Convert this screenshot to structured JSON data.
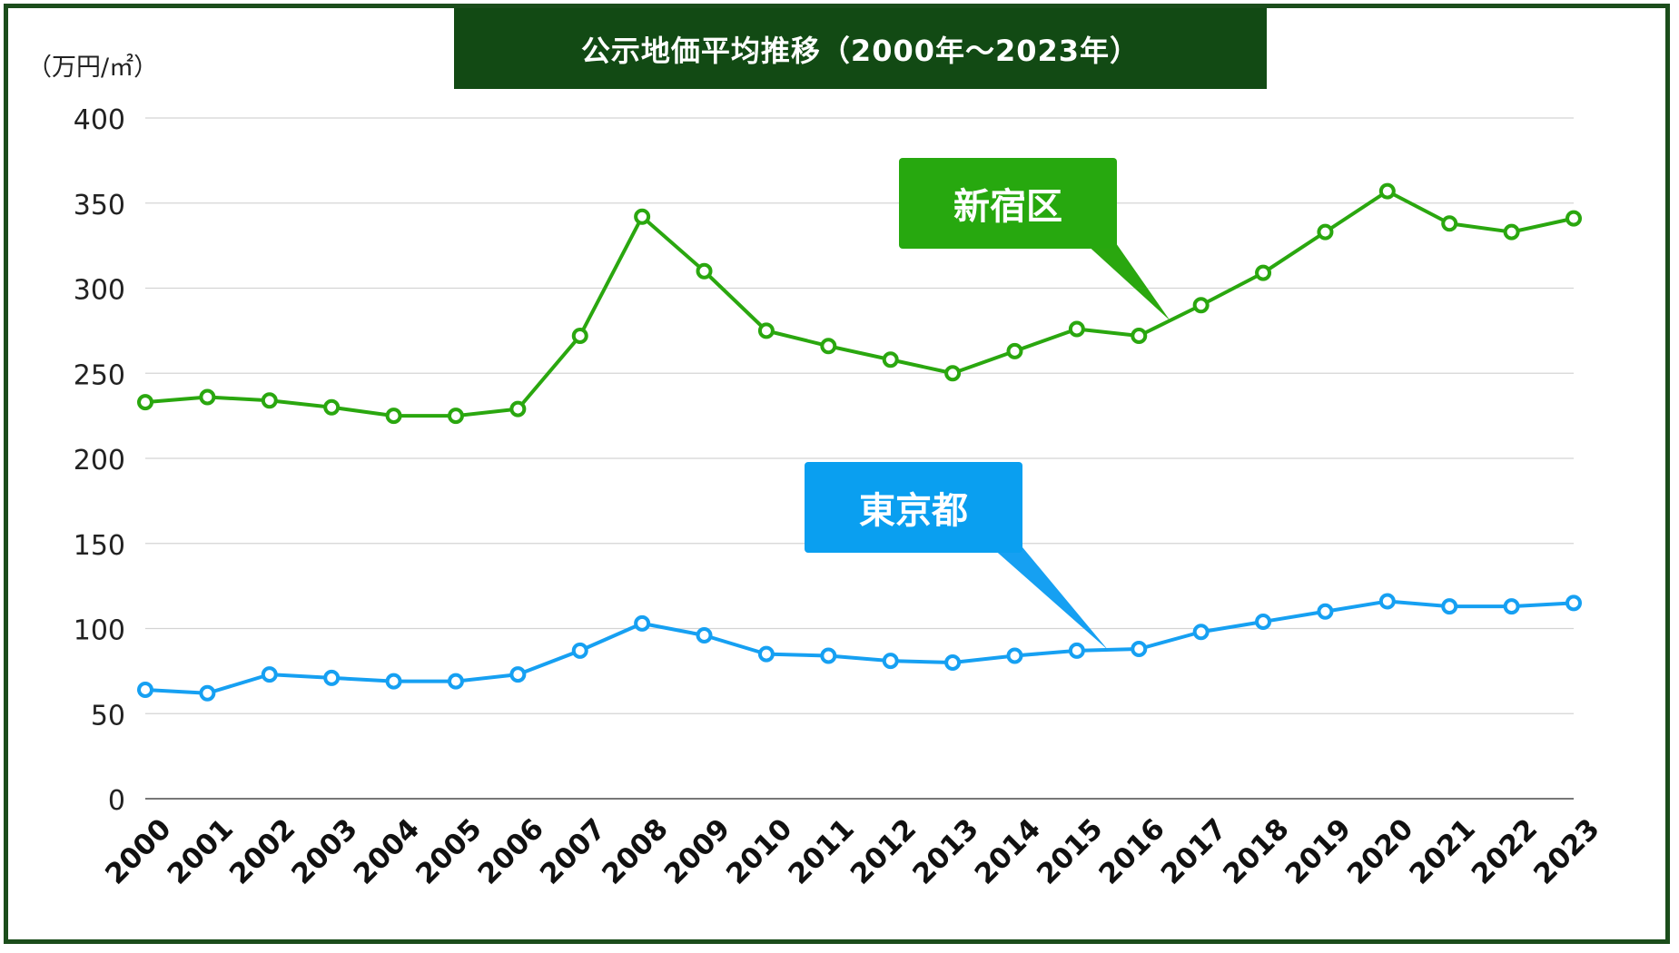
{
  "chart_data": {
    "type": "line",
    "title": "公示地価平均推移（2000年〜2023年）",
    "ylabel": "（万円/㎡）",
    "xlabel": "",
    "ylim": [
      0,
      400
    ],
    "yticks": [
      0,
      50,
      100,
      150,
      200,
      250,
      300,
      350,
      400
    ],
    "ytick_labels": [
      "0",
      "50",
      "100",
      "150",
      "200",
      "250",
      "300",
      "350",
      "400"
    ],
    "categories": [
      "2000",
      "2001",
      "2002",
      "2003",
      "2004",
      "2005",
      "2006",
      "2007",
      "2008",
      "2009",
      "2010",
      "2011",
      "2012",
      "2013",
      "2014",
      "2015",
      "2016",
      "2017",
      "2018",
      "2019",
      "2020",
      "2021",
      "2022",
      "2023"
    ],
    "grid": true,
    "legend": "callouts",
    "series": [
      {
        "name": "新宿区",
        "color": "#2aa70f",
        "values": [
          233,
          236,
          234,
          230,
          225,
          225,
          229,
          272,
          342,
          310,
          275,
          266,
          258,
          250,
          263,
          276,
          272,
          290,
          309,
          333,
          357,
          338,
          333,
          341
        ]
      },
      {
        "name": "東京都",
        "color": "#16a0f2",
        "values": [
          64,
          62,
          73,
          71,
          69,
          69,
          73,
          87,
          103,
          96,
          85,
          84,
          81,
          80,
          84,
          87,
          88,
          98,
          104,
          110,
          116,
          113,
          113,
          115
        ]
      }
    ]
  }
}
